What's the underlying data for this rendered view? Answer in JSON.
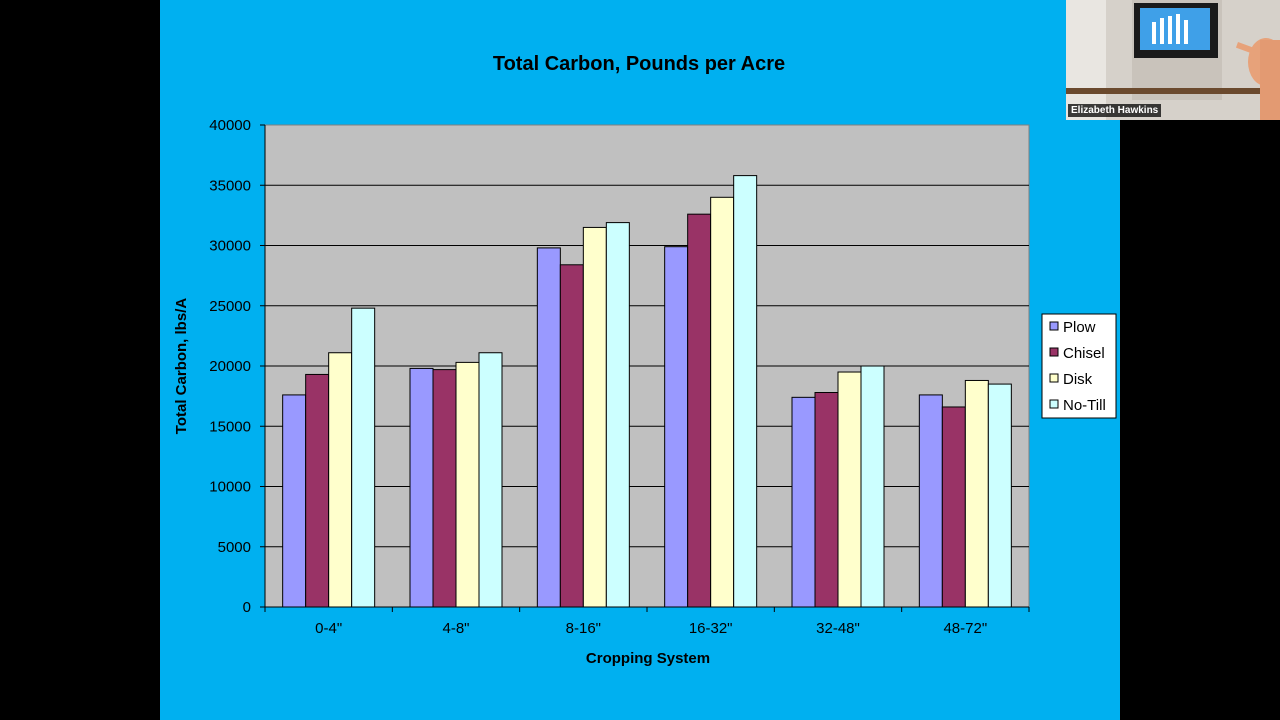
{
  "chart_data": {
    "type": "bar",
    "title": "Total Carbon, Pounds per Acre",
    "xlabel": "Cropping System",
    "ylabel": "Total Carbon, lbs/A",
    "categories": [
      "0-4\"",
      "4-8\"",
      "8-16\"",
      "16-32\"",
      "32-48\"",
      "48-72\""
    ],
    "series": [
      {
        "name": "Plow",
        "color": "#9999ff",
        "values": [
          17600,
          19800,
          29800,
          29900,
          17400,
          17600
        ]
      },
      {
        "name": "Chisel",
        "color": "#993366",
        "values": [
          19300,
          19700,
          28400,
          32600,
          17800,
          16600
        ]
      },
      {
        "name": "Disk",
        "color": "#ffffcc",
        "values": [
          21100,
          20300,
          31500,
          34000,
          19500,
          18800
        ]
      },
      {
        "name": "No-Till",
        "color": "#ccffff",
        "values": [
          24800,
          21100,
          31900,
          35800,
          20000,
          18500
        ]
      }
    ],
    "ylim": [
      0,
      40000
    ],
    "yticks": [
      0,
      5000,
      10000,
      15000,
      20000,
      25000,
      30000,
      35000,
      40000
    ],
    "grid": true,
    "legend": "right",
    "plot_background": "#c0c0c0",
    "slide_background": "#00b0f0"
  },
  "participant": {
    "name": "Elizabeth Hawkins"
  }
}
